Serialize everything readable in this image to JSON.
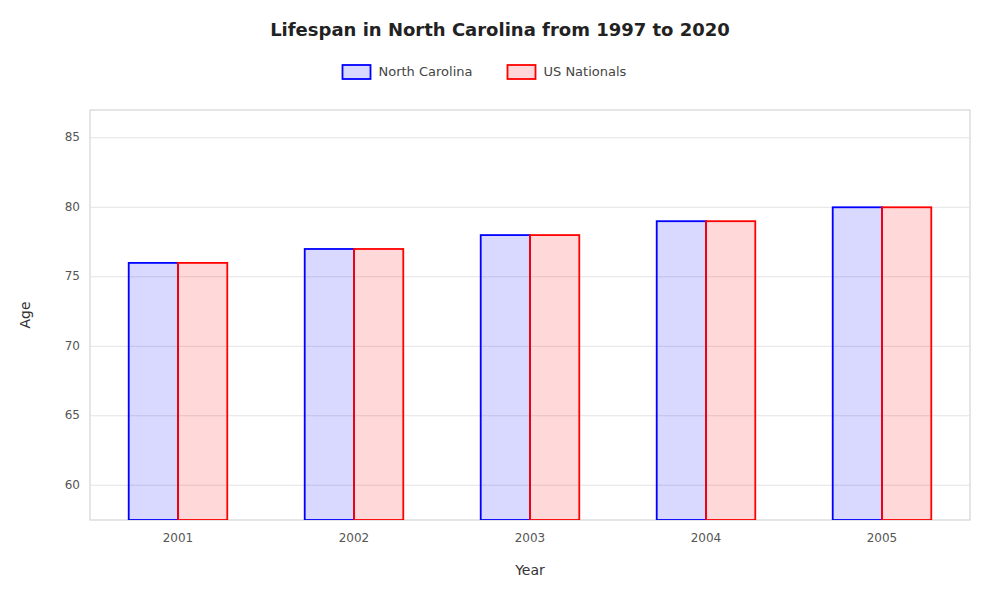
{
  "chart_data": {
    "type": "bar",
    "title": "Lifespan in North Carolina from 1997 to 2020",
    "x_label": "Year",
    "y_label": "Age",
    "categories": [
      "2001",
      "2002",
      "2003",
      "2004",
      "2005"
    ],
    "series": [
      {
        "name": "North Carolina",
        "color": "#0000ff",
        "values": [
          76,
          77,
          78,
          79,
          80
        ]
      },
      {
        "name": "US Nationals",
        "color": "#ff0000",
        "values": [
          76,
          77,
          78,
          79,
          80
        ]
      }
    ],
    "ylim": [
      57.5,
      87
    ],
    "yticks": [
      60,
      65,
      70,
      75,
      80,
      85
    ],
    "grid": true,
    "legend": "top"
  }
}
